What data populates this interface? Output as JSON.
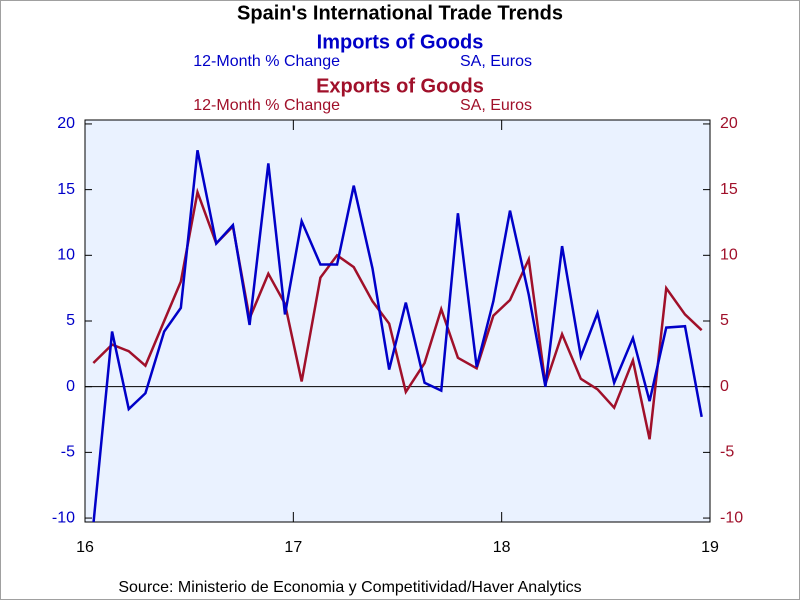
{
  "chart_data": {
    "type": "line",
    "title": "Spain's International Trade Trends",
    "source": "Source:  Ministerio de Economia y Competitividad/Haver Analytics",
    "x": [
      2016.04,
      2016.13,
      2016.21,
      2016.29,
      2016.38,
      2016.46,
      2016.54,
      2016.63,
      2016.71,
      2016.79,
      2016.88,
      2016.96,
      2017.04,
      2017.13,
      2017.21,
      2017.29,
      2017.38,
      2017.46,
      2017.54,
      2017.63,
      2017.71,
      2017.79,
      2017.88,
      2017.96,
      2018.04,
      2018.13,
      2018.21,
      2018.29,
      2018.38,
      2018.46,
      2018.54,
      2018.63,
      2018.71,
      2018.79,
      2018.88,
      2018.96
    ],
    "xlim": [
      2016,
      2019
    ],
    "xticks": [
      {
        "value": 2016,
        "label": "16"
      },
      {
        "value": 2017,
        "label": "17"
      },
      {
        "value": 2018,
        "label": "18"
      },
      {
        "value": 2019,
        "label": "19"
      }
    ],
    "ylim": [
      -10.3,
      20.3
    ],
    "yticks": [
      -10,
      -5,
      0,
      5,
      10,
      15,
      20
    ],
    "y2lim": [
      -10.3,
      20.3
    ],
    "y2ticks": [
      -10,
      -5,
      0,
      5,
      10,
      15,
      20
    ],
    "series": [
      {
        "name": "Imports of Goods",
        "subtitle": [
          "12-Month % Change",
          "SA, Euros"
        ],
        "color": "#0000c8",
        "values": [
          -10.5,
          4.2,
          -1.7,
          -0.5,
          4.2,
          6,
          18,
          10.9,
          12.3,
          4.7,
          17,
          5.5,
          12.6,
          9.3,
          9.3,
          15.3,
          9,
          1.3,
          6.4,
          0.3,
          -0.3,
          13.2,
          1.5,
          6.5,
          13.4,
          7,
          0,
          10.7,
          2.3,
          5.6,
          0.3,
          3.7,
          -1.1,
          4.5,
          4.6,
          -2.3
        ]
      },
      {
        "name": "Exports of Goods",
        "subtitle": [
          "12-Month % Change",
          "SA, Euros"
        ],
        "color": "#a0102a",
        "axis": "y2",
        "values": [
          1.8,
          3.2,
          2.7,
          1.6,
          5,
          8,
          14.8,
          10.9,
          12.2,
          5.2,
          8.6,
          6.3,
          0.4,
          8.3,
          10,
          9.1,
          6.5,
          4.8,
          -0.4,
          1.8,
          5.9,
          2.2,
          1.4,
          5.4,
          6.6,
          9.7,
          0.2,
          4,
          0.6,
          -0.2,
          -1.6,
          2,
          -4,
          7.5,
          5.5,
          4.3
        ]
      }
    ]
  }
}
